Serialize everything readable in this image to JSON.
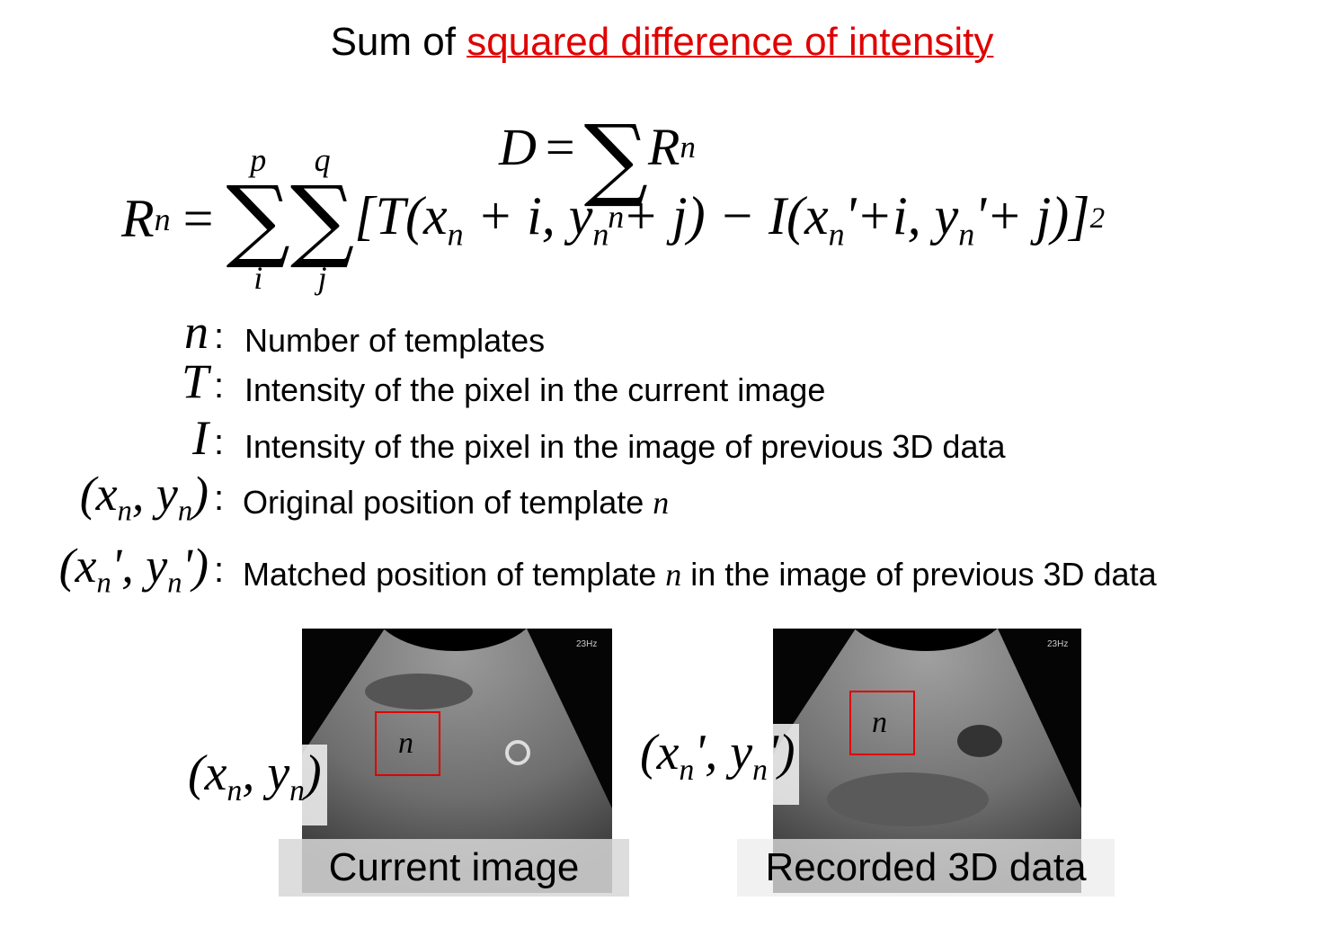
{
  "title": {
    "plain": "Sum of ",
    "highlight": "squared difference of intensity"
  },
  "formula_d": {
    "lhs": "D",
    "eq": "=",
    "sum": "∑",
    "sum_lower": "n",
    "term": "R",
    "term_sub": "n"
  },
  "formula_r": {
    "lhs": "R",
    "lhs_sub": "n",
    "eq": "=",
    "sum1": "∑",
    "sum1_upper": "p",
    "sum1_lower": "i",
    "sum2": "∑",
    "sum2_upper": "q",
    "sum2_lower": "j",
    "body": [
      "[T(x",
      "n",
      " + i, y",
      "n",
      " + j) − I(x",
      "n",
      "'+i, y",
      "n",
      "'+ j)]"
    ],
    "power": "2"
  },
  "definitions": [
    {
      "symbol": [
        "n"
      ],
      "colon": ":",
      "text": [
        "Number of templates"
      ]
    },
    {
      "symbol": [
        "T"
      ],
      "colon": ":",
      "text": [
        "Intensity of the pixel in the current image"
      ]
    },
    {
      "symbol": [
        "I"
      ],
      "colon": ":",
      "text": [
        "Intensity of the pixel in the image of previous 3D data"
      ]
    },
    {
      "symbol": [
        "(x",
        "n",
        ", y",
        "n",
        ")"
      ],
      "colon": ":",
      "text": [
        "Original position of template ",
        "n"
      ]
    },
    {
      "symbol": [
        "(x",
        "n",
        "', y",
        "n",
        "')"
      ],
      "colon": ":",
      "text": [
        "Matched position of template ",
        "n",
        " in the image of previous 3D data"
      ]
    }
  ],
  "images": [
    {
      "caption": "Current image",
      "box_label": "n",
      "rate": "23Hz",
      "position": [
        "(x",
        "n",
        ", y",
        "n",
        ")"
      ]
    },
    {
      "caption": "Recorded 3D data",
      "box_label": "n",
      "rate": "23Hz",
      "position": [
        "(x",
        "n",
        "', y",
        "n",
        "')"
      ]
    }
  ]
}
